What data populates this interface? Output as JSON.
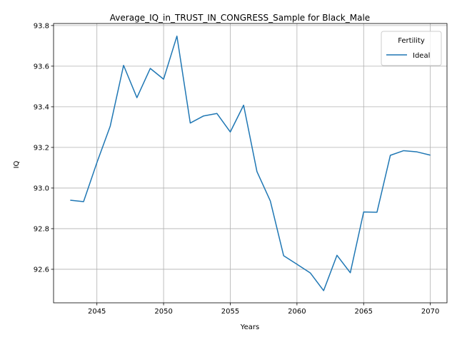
{
  "chart_data": {
    "type": "line",
    "title": "Average_IQ_in_TRUST_IN_CONGRESS_Sample for Black_Male",
    "xlabel": "Years",
    "ylabel": "IQ",
    "xlim": [
      2041.75,
      2071.25
    ],
    "ylim": [
      92.435,
      93.81
    ],
    "x_ticks": [
      2045,
      2050,
      2055,
      2060,
      2065,
      2070
    ],
    "x_tick_labels": [
      "2045",
      "2050",
      "2055",
      "2060",
      "2065",
      "2070"
    ],
    "y_ticks": [
      92.6,
      92.8,
      93.0,
      93.2,
      93.4,
      93.6,
      93.8
    ],
    "y_tick_labels": [
      "92.6",
      "92.8",
      "93.0",
      "93.2",
      "93.4",
      "93.6",
      "93.8"
    ],
    "grid": true,
    "legend": {
      "title": "Fertility",
      "placement": "top-right"
    },
    "series": [
      {
        "name": "Ideal",
        "color": "#1f77b4",
        "x": [
          2043,
          2044,
          2045,
          2046,
          2047,
          2048,
          2049,
          2050,
          2051,
          2052,
          2053,
          2054,
          2055,
          2056,
          2057,
          2058,
          2059,
          2060,
          2061,
          2062,
          2063,
          2064,
          2065,
          2066,
          2067,
          2068,
          2069,
          2070
        ],
        "values": [
          92.94,
          92.933,
          93.125,
          93.305,
          93.604,
          93.445,
          93.589,
          93.536,
          93.748,
          93.32,
          93.355,
          93.367,
          93.276,
          93.408,
          93.081,
          92.937,
          92.667,
          92.625,
          92.582,
          92.495,
          92.669,
          92.583,
          92.882,
          92.881,
          93.161,
          93.184,
          93.178,
          93.162
        ]
      }
    ]
  }
}
